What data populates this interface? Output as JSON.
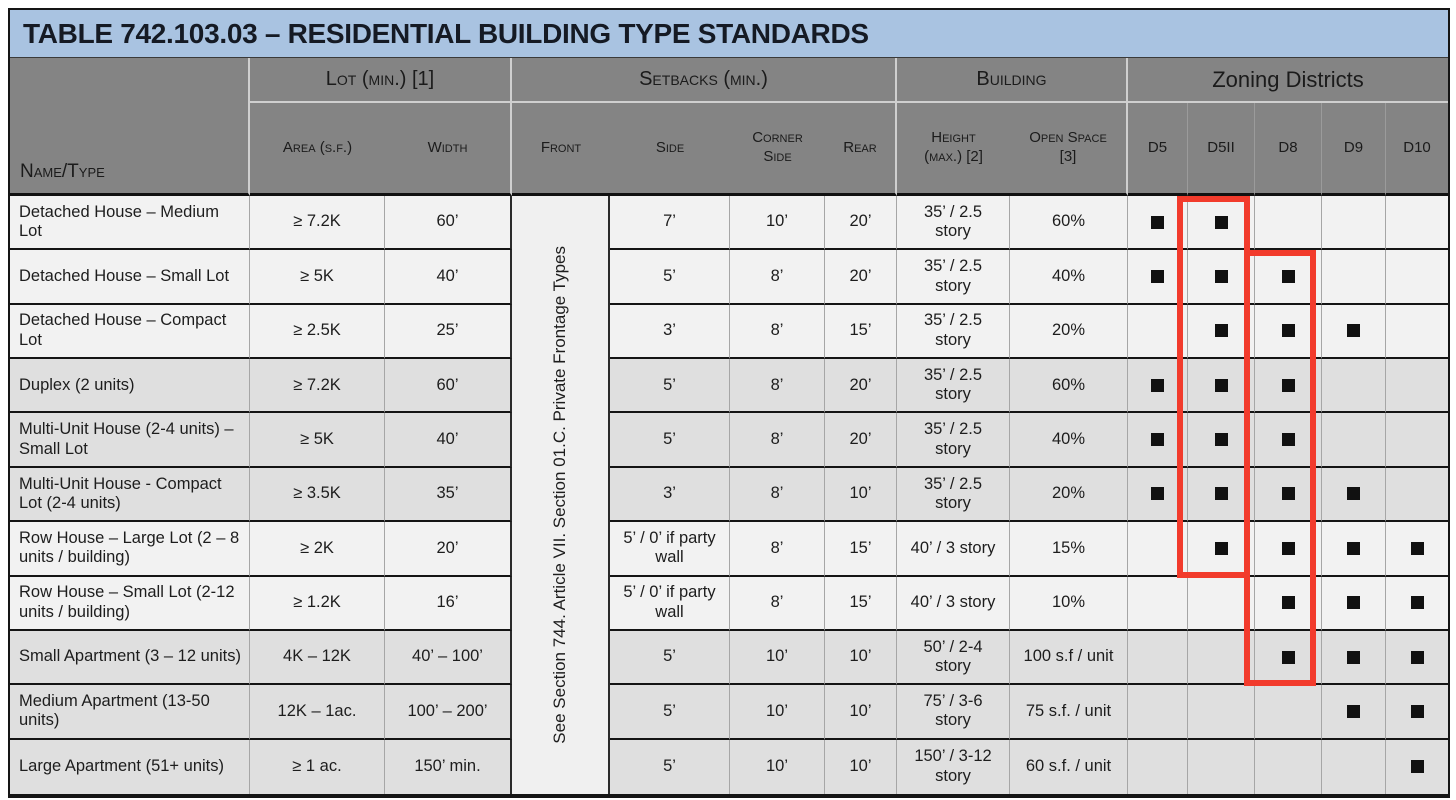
{
  "title": "TABLE 742.103.03 – RESIDENTIAL BUILDING TYPE STANDARDS",
  "header": {
    "name_type": "Name/Type",
    "groups": {
      "lot": "Lot (min.) [1]",
      "setbacks": "Setbacks (min.)",
      "building": "Building",
      "zoning": "Zoning Districts"
    },
    "columns": {
      "area": "Area (s.f.)",
      "width": "Width",
      "front": "Front",
      "side": "Side",
      "corner_side": "Corner Side",
      "rear": "Rear",
      "height": "Height (max.) [2]",
      "open_space": "Open Space [3]",
      "districts": [
        "D5",
        "D5II",
        "D8",
        "D9",
        "D10"
      ]
    }
  },
  "front_note": "See Section 744. Article VII. Section 01.C. Private Frontage Types",
  "rows": [
    {
      "name": "Detached House – Medium Lot",
      "area": "≥ 7.2K",
      "width": "60’",
      "side": "7’",
      "corner_side": "10’",
      "rear": "20’",
      "height": "35’ / 2.5 story",
      "open_space": "60%",
      "districts": [
        true,
        true,
        false,
        false,
        false
      ],
      "shaded": false
    },
    {
      "name": "Detached House – Small Lot",
      "area": "≥ 5K",
      "width": "40’",
      "side": "5’",
      "corner_side": "8’",
      "rear": "20’",
      "height": "35’ / 2.5 story",
      "open_space": "40%",
      "districts": [
        true,
        true,
        true,
        false,
        false
      ],
      "shaded": false
    },
    {
      "name": "Detached House – Compact Lot",
      "area": "≥ 2.5K",
      "width": "25’",
      "side": "3’",
      "corner_side": "8’",
      "rear": "15’",
      "height": "35’ / 2.5 story",
      "open_space": "20%",
      "districts": [
        false,
        true,
        true,
        true,
        false
      ],
      "shaded": false
    },
    {
      "name": "Duplex (2 units)",
      "area": "≥ 7.2K",
      "width": "60’",
      "side": "5’",
      "corner_side": "8’",
      "rear": "20’",
      "height": "35’ / 2.5 story",
      "open_space": "60%",
      "districts": [
        true,
        true,
        true,
        false,
        false
      ],
      "shaded": true
    },
    {
      "name": "Multi-Unit House (2-4 units) – Small Lot",
      "area": "≥ 5K",
      "width": "40’",
      "side": "5’",
      "corner_side": "8’",
      "rear": "20’",
      "height": "35’ / 2.5 story",
      "open_space": "40%",
      "districts": [
        true,
        true,
        true,
        false,
        false
      ],
      "shaded": true
    },
    {
      "name": "Multi-Unit House - Compact Lot (2-4 units)",
      "area": "≥ 3.5K",
      "width": "35’",
      "side": "3’",
      "corner_side": "8’",
      "rear": "10’",
      "height": "35’ / 2.5 story",
      "open_space": "20%",
      "districts": [
        true,
        true,
        true,
        true,
        false
      ],
      "shaded": true
    },
    {
      "name": "Row House – Large Lot (2 – 8 units / building)",
      "area": "≥ 2K",
      "width": "20’",
      "side": "5’ / 0’ if party wall",
      "corner_side": "8’",
      "rear": "15’",
      "height": "40’ / 3 story",
      "open_space": "15%",
      "districts": [
        false,
        true,
        true,
        true,
        true
      ],
      "shaded": false
    },
    {
      "name": "Row House – Small Lot (2-12 units / building)",
      "area": "≥ 1.2K",
      "width": "16’",
      "side": "5’ / 0’ if party wall",
      "corner_side": "8’",
      "rear": "15’",
      "height": "40’ / 3 story",
      "open_space": "10%",
      "districts": [
        false,
        false,
        true,
        true,
        true
      ],
      "shaded": false
    },
    {
      "name": "Small Apartment (3 – 12 units)",
      "area": "4K – 12K",
      "width": "40’ – 100’",
      "side": "5’",
      "corner_side": "10’",
      "rear": "10’",
      "height": "50’ / 2-4 story",
      "open_space": "100 s.f / unit",
      "districts": [
        false,
        false,
        true,
        true,
        true
      ],
      "shaded": true
    },
    {
      "name": "Medium Apartment (13-50 units)",
      "area": "12K – 1ac.",
      "width": "100’ – 200’",
      "side": "5’",
      "corner_side": "10’",
      "rear": "10’",
      "height": "75’ / 3-6 story",
      "open_space": "75 s.f. / unit",
      "districts": [
        false,
        false,
        false,
        true,
        true
      ],
      "shaded": true
    },
    {
      "name": "Large Apartment (51+ units)",
      "area": "≥ 1 ac.",
      "width": "150’ min.",
      "side": "5’",
      "corner_side": "10’",
      "rear": "10’",
      "height": "150’ / 3-12 story",
      "open_space": "60 s.f. / unit",
      "districts": [
        false,
        false,
        false,
        false,
        true
      ],
      "shaded": true
    }
  ],
  "annotations": {
    "highlight_color": "#f23b2c",
    "boxes": [
      {
        "column": "D5II",
        "row_span": "rows 1-7"
      },
      {
        "column": "D8",
        "row_span": "rows 2-9"
      }
    ]
  },
  "colors": {
    "title_bg": "#a9c3e1",
    "header_bg": "#848484",
    "row_light": "#f2f2f2",
    "row_dark": "#dfdfdf",
    "note_bg": "#f0f0f0",
    "mark": "#111111"
  }
}
